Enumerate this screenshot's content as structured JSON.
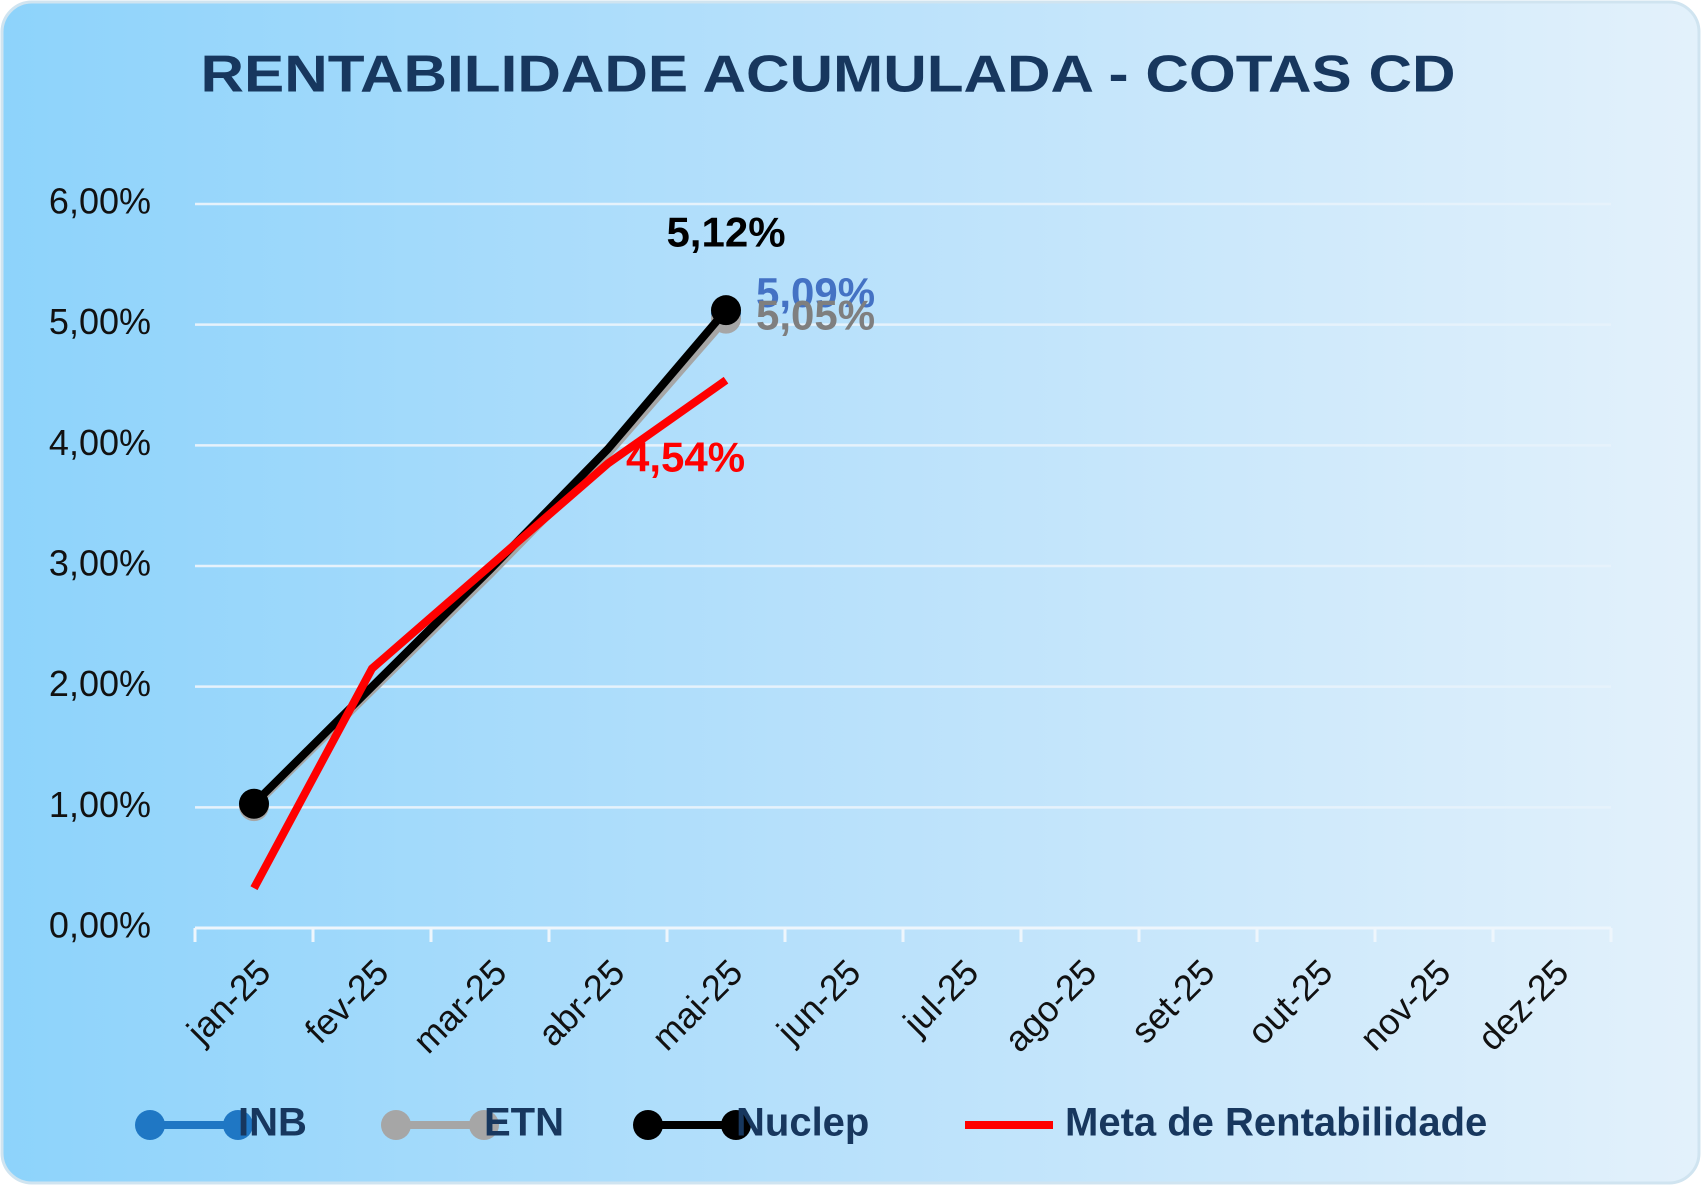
{
  "chart_data": {
    "type": "line",
    "title": "RENTABILIDADE ACUMULADA - COTAS CD",
    "categories": [
      "jan-25",
      "fev-25",
      "mar-25",
      "abr-25",
      "mai-25",
      "jun-25",
      "jul-25",
      "ago-25",
      "set-25",
      "out-25",
      "nov-25",
      "dez-25"
    ],
    "series": [
      {
        "name": "INB",
        "color": "#1f77c4",
        "label_color": "#4472c4",
        "marker": true,
        "values": [
          1.02,
          1.98,
          2.95,
          3.95,
          5.09,
          null,
          null,
          null,
          null,
          null,
          null,
          null
        ],
        "value_labels": [
          null,
          null,
          null,
          null,
          "5,09%",
          null,
          null,
          null,
          null,
          null,
          null,
          null
        ]
      },
      {
        "name": "ETN",
        "color": "#a6a6a6",
        "label_color": "#7f7f7f",
        "marker": true,
        "values": [
          1.01,
          1.97,
          2.93,
          3.93,
          5.05,
          null,
          null,
          null,
          null,
          null,
          null,
          null
        ],
        "value_labels": [
          null,
          null,
          null,
          null,
          "5,05%",
          null,
          null,
          null,
          null,
          null,
          null,
          null
        ]
      },
      {
        "name": "Nuclep",
        "color": "#000000",
        "label_color": "#000000",
        "marker": true,
        "values": [
          1.03,
          2.0,
          2.97,
          3.97,
          5.12,
          null,
          null,
          null,
          null,
          null,
          null,
          null
        ],
        "value_labels": [
          null,
          null,
          null,
          null,
          "5,12%",
          null,
          null,
          null,
          null,
          null,
          null,
          null
        ]
      },
      {
        "name": "Meta de Rentabilidade",
        "color": "#ff0000",
        "label_color": "#ff0000",
        "marker": false,
        "values": [
          0.33,
          2.15,
          3.0,
          3.85,
          4.54,
          null,
          null,
          null,
          null,
          null,
          null,
          null
        ],
        "value_labels": [
          null,
          null,
          null,
          null,
          "4,54%",
          null,
          null,
          null,
          null,
          null,
          null,
          null
        ]
      }
    ],
    "ylim": [
      0,
      6
    ],
    "yticks": [
      {
        "value": 0,
        "label": "0,00%"
      },
      {
        "value": 1,
        "label": "1,00%"
      },
      {
        "value": 2,
        "label": "2,00%"
      },
      {
        "value": 3,
        "label": "3,00%"
      },
      {
        "value": 4,
        "label": "4,00%"
      },
      {
        "value": 5,
        "label": "5,00%"
      },
      {
        "value": 6,
        "label": "6,00%"
      }
    ],
    "grid": true,
    "legend": "bottom"
  }
}
